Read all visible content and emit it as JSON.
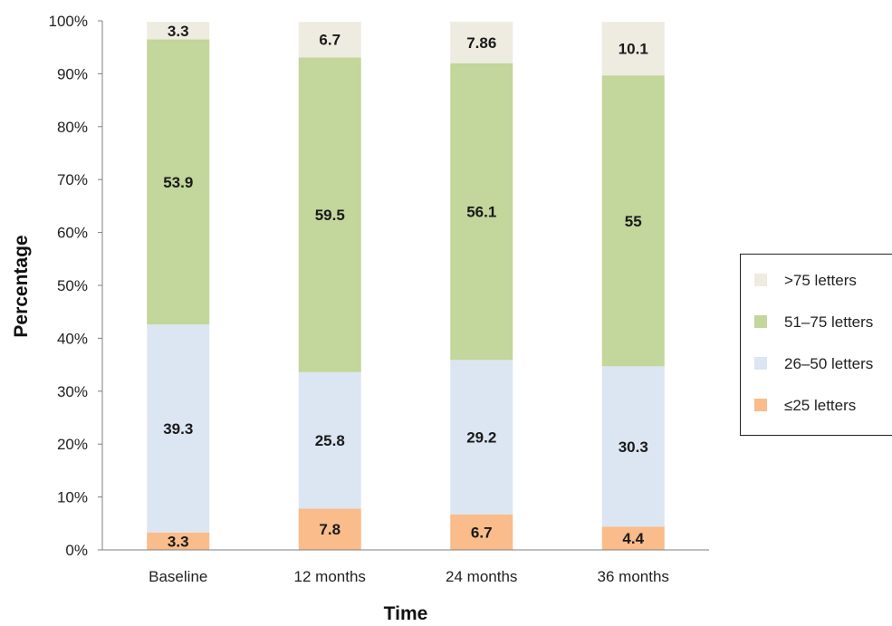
{
  "chart_data": {
    "type": "bar",
    "stacked": true,
    "categories": [
      "Baseline",
      "12 months",
      "24 months",
      "36 months"
    ],
    "series": [
      {
        "name": "≤25 letters",
        "color": "#f9bc8a",
        "values": [
          3.3,
          7.8,
          6.7,
          4.4
        ]
      },
      {
        "name": "26–50 letters",
        "color": "#dce6f2",
        "values": [
          39.3,
          25.8,
          29.2,
          30.3
        ]
      },
      {
        "name": "51–75 letters",
        "color": "#c3d69b",
        "values": [
          53.9,
          59.5,
          56.1,
          55
        ]
      },
      {
        "name": ">75 letters",
        "color": "#eeece1",
        "values": [
          3.3,
          6.7,
          7.86,
          10.1
        ]
      }
    ],
    "ylim": [
      0,
      100
    ],
    "yticks": [
      "0%",
      "10%",
      "20%",
      "30%",
      "40%",
      "50%",
      "60%",
      "70%",
      "80%",
      "90%",
      "100%"
    ],
    "xlabel": "Time",
    "ylabel": "Percentage",
    "legend_position": "right",
    "grid": false
  }
}
